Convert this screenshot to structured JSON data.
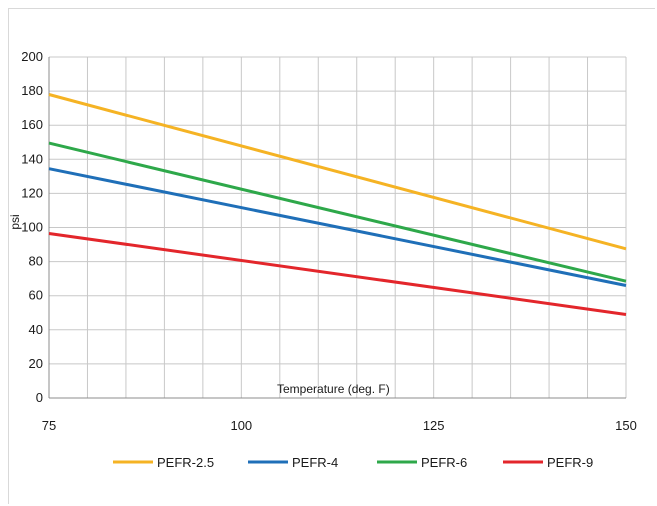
{
  "chart_data": {
    "type": "line",
    "title": "",
    "xlabel": "Temperature (deg. F)",
    "ylabel": "psi",
    "xlim": [
      75,
      150
    ],
    "ylim": [
      0,
      200
    ],
    "x_ticks": [
      75,
      100,
      125,
      150
    ],
    "y_ticks": [
      0,
      20,
      40,
      60,
      80,
      100,
      120,
      140,
      160,
      180,
      200
    ],
    "grid": true,
    "legend_position": "bottom",
    "series": [
      {
        "name": "PEFR-2.5",
        "color": "#f5b324",
        "x": [
          75,
          150
        ],
        "y": [
          178,
          87.5
        ]
      },
      {
        "name": "PEFR-4",
        "color": "#1f6fb8",
        "x": [
          75,
          150
        ],
        "y": [
          134.5,
          66
        ]
      },
      {
        "name": "PEFR-6",
        "color": "#2ea84a",
        "x": [
          75,
          150
        ],
        "y": [
          149.5,
          68.5
        ]
      },
      {
        "name": "PEFR-9",
        "color": "#e3262b",
        "x": [
          75,
          150
        ],
        "y": [
          96.5,
          49
        ]
      }
    ]
  }
}
